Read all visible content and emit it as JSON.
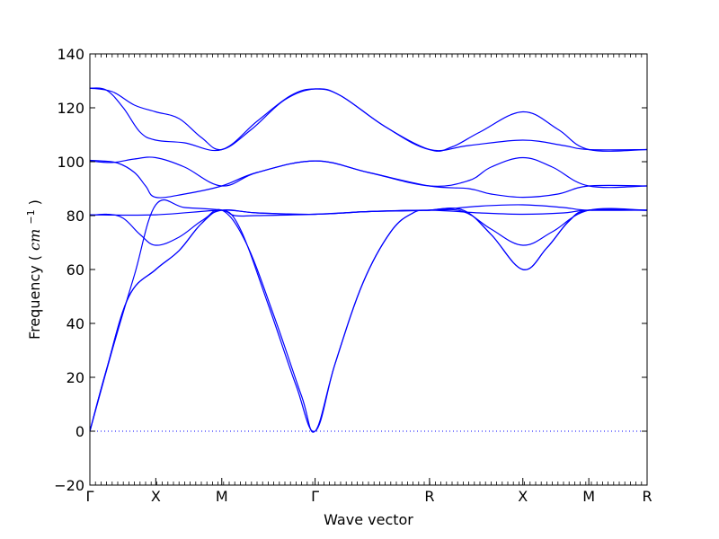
{
  "chart_data": {
    "type": "line",
    "title": "",
    "xlabel": "Wave vector",
    "ylabel": "Frequency ( cm⁻¹ )",
    "ylabel_prefix": "Frequency (",
    "ylabel_unit": "cm",
    "ylabel_exponent": "−1",
    "ylabel_suffix": ")",
    "ylim": [
      -20,
      140
    ],
    "yticks": [
      -20,
      0,
      20,
      40,
      60,
      80,
      100,
      120,
      140
    ],
    "ytick_labels": [
      "−20",
      "0",
      "20",
      "40",
      "60",
      "80",
      "100",
      "120",
      "140"
    ],
    "xlim": [
      0,
      1
    ],
    "high_symmetry_points": [
      {
        "label": "Γ",
        "x": 0.0
      },
      {
        "label": "X",
        "x": 0.1183
      },
      {
        "label": "M",
        "x": 0.2367
      },
      {
        "label": "Γ",
        "x": 0.4042
      },
      {
        "label": "R",
        "x": 0.6095
      },
      {
        "label": "X",
        "x": 0.777
      },
      {
        "label": "M",
        "x": 0.8954
      },
      {
        "label": "R",
        "x": 1.0
      }
    ],
    "grid": false,
    "legend": "none",
    "zero_line": {
      "y": 0,
      "style": "dotted"
    },
    "line_color": "#0000ff",
    "series": [
      {
        "points": [
          [
            0,
            0
          ],
          [
            0.03,
            23
          ],
          [
            0.07,
            50
          ],
          [
            0.1183,
            60
          ],
          [
            0.16,
            67
          ],
          [
            0.2,
            77
          ],
          [
            0.2367,
            82
          ],
          [
            0.27,
            75
          ],
          [
            0.32,
            47
          ],
          [
            0.37,
            17
          ],
          [
            0.4042,
            0
          ],
          [
            0.44,
            25
          ],
          [
            0.49,
            55
          ],
          [
            0.54,
            74
          ],
          [
            0.58,
            81
          ],
          [
            0.6095,
            82
          ],
          [
            0.67,
            82
          ],
          [
            0.72,
            73
          ],
          [
            0.777,
            60
          ],
          [
            0.82,
            68
          ],
          [
            0.86,
            78
          ],
          [
            0.8954,
            82
          ],
          [
            1.0,
            82
          ]
        ]
      },
      {
        "points": [
          [
            0,
            0
          ],
          [
            0.03,
            23
          ],
          [
            0.07,
            50
          ],
          [
            0.1183,
            60
          ],
          [
            0.16,
            67
          ],
          [
            0.2,
            77
          ],
          [
            0.2367,
            82
          ],
          [
            0.28,
            70
          ],
          [
            0.33,
            43
          ],
          [
            0.38,
            13
          ],
          [
            0.4042,
            0
          ],
          [
            0.44,
            25
          ],
          [
            0.49,
            55
          ],
          [
            0.54,
            74
          ],
          [
            0.58,
            81
          ],
          [
            0.6095,
            82
          ],
          [
            0.67,
            82
          ],
          [
            0.72,
            73
          ],
          [
            0.777,
            60
          ],
          [
            0.82,
            68
          ],
          [
            0.86,
            78
          ],
          [
            0.8954,
            82
          ],
          [
            1.0,
            82
          ]
        ]
      },
      {
        "points": [
          [
            0,
            0
          ],
          [
            0.04,
            30
          ],
          [
            0.08,
            58
          ],
          [
            0.1183,
            84
          ],
          [
            0.17,
            83
          ],
          [
            0.2367,
            82
          ],
          [
            0.26,
            80
          ],
          [
            0.3,
            80
          ],
          [
            0.4042,
            80.5
          ],
          [
            0.5,
            81.5
          ],
          [
            0.6095,
            82
          ],
          [
            0.7,
            83.5
          ],
          [
            0.777,
            84
          ],
          [
            0.85,
            83
          ],
          [
            0.8954,
            82
          ],
          [
            1.0,
            82
          ]
        ]
      },
      {
        "points": [
          [
            0,
            80
          ],
          [
            0.03,
            80.5
          ],
          [
            0.06,
            79
          ],
          [
            0.09,
            73
          ],
          [
            0.1183,
            69
          ],
          [
            0.16,
            72
          ],
          [
            0.2,
            78
          ],
          [
            0.2367,
            82
          ],
          [
            0.3,
            81
          ],
          [
            0.4042,
            80.5
          ],
          [
            0.5,
            81.5
          ],
          [
            0.6095,
            82
          ],
          [
            0.67,
            81.5
          ],
          [
            0.72,
            75
          ],
          [
            0.777,
            69
          ],
          [
            0.83,
            74
          ],
          [
            0.8954,
            82
          ],
          [
            1.0,
            82
          ]
        ]
      },
      {
        "points": [
          [
            0,
            80.3
          ],
          [
            0.1183,
            80.3
          ],
          [
            0.2367,
            82
          ],
          [
            0.3,
            81
          ],
          [
            0.4042,
            80.5
          ],
          [
            0.5,
            81.5
          ],
          [
            0.6095,
            82
          ],
          [
            0.7,
            81
          ],
          [
            0.777,
            80.5
          ],
          [
            0.85,
            81
          ],
          [
            0.8954,
            82
          ],
          [
            1.0,
            82
          ]
        ]
      },
      {
        "points": [
          [
            0,
            100.5
          ],
          [
            0.02,
            100.3
          ],
          [
            0.05,
            99.5
          ],
          [
            0.08,
            96
          ],
          [
            0.1,
            91
          ],
          [
            0.1183,
            86.8
          ],
          [
            0.17,
            88
          ],
          [
            0.2367,
            91
          ],
          [
            0.3,
            96
          ],
          [
            0.4042,
            100.3
          ],
          [
            0.5,
            96
          ],
          [
            0.6095,
            91
          ],
          [
            0.68,
            90
          ],
          [
            0.72,
            88
          ],
          [
            0.777,
            86.8
          ],
          [
            0.84,
            88
          ],
          [
            0.8954,
            91
          ],
          [
            1.0,
            91
          ]
        ]
      },
      {
        "points": [
          [
            0,
            100.3
          ],
          [
            0.04,
            99.7
          ],
          [
            0.08,
            101
          ],
          [
            0.1183,
            101.5
          ],
          [
            0.17,
            98
          ],
          [
            0.2367,
            91
          ],
          [
            0.3,
            96
          ],
          [
            0.4042,
            100.3
          ],
          [
            0.5,
            96
          ],
          [
            0.6095,
            91
          ],
          [
            0.68,
            93
          ],
          [
            0.72,
            98
          ],
          [
            0.777,
            101.5
          ],
          [
            0.83,
            98
          ],
          [
            0.8954,
            91
          ],
          [
            1.0,
            91
          ]
        ]
      },
      {
        "points": [
          [
            0,
            127.3
          ],
          [
            0.03,
            126.5
          ],
          [
            0.06,
            120
          ],
          [
            0.09,
            111
          ],
          [
            0.1183,
            108
          ],
          [
            0.17,
            107
          ],
          [
            0.2367,
            104.5
          ],
          [
            0.3,
            115
          ],
          [
            0.36,
            124.5
          ],
          [
            0.4042,
            127
          ],
          [
            0.45,
            124.5
          ],
          [
            0.53,
            113
          ],
          [
            0.6095,
            104.5
          ],
          [
            0.68,
            106
          ],
          [
            0.777,
            108
          ],
          [
            0.85,
            106
          ],
          [
            0.8954,
            104.5
          ],
          [
            1.0,
            104.5
          ]
        ]
      },
      {
        "points": [
          [
            0,
            127.3
          ],
          [
            0.04,
            126
          ],
          [
            0.08,
            121
          ],
          [
            0.1183,
            118.5
          ],
          [
            0.16,
            116
          ],
          [
            0.2,
            109
          ],
          [
            0.2367,
            104.5
          ],
          [
            0.29,
            112
          ],
          [
            0.35,
            123
          ],
          [
            0.4042,
            127
          ],
          [
            0.45,
            124.5
          ],
          [
            0.53,
            113
          ],
          [
            0.6095,
            104.5
          ],
          [
            0.65,
            105.5
          ],
          [
            0.7,
            111
          ],
          [
            0.777,
            118.5
          ],
          [
            0.84,
            112
          ],
          [
            0.8954,
            104.5
          ],
          [
            1.0,
            104.5
          ]
        ]
      }
    ]
  }
}
